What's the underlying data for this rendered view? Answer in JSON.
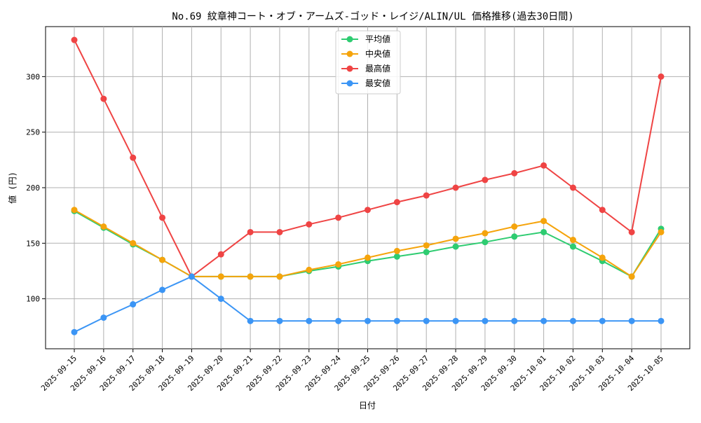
{
  "chart_data": {
    "type": "line",
    "title": "No.69 紋章神コート・オブ・アームズ-ゴッド・レイジ/ALIN/UL 価格推移(過去30日間)",
    "xlabel": "日付",
    "ylabel": "値 (円)",
    "categories": [
      "2025-09-15",
      "2025-09-16",
      "2025-09-17",
      "2025-09-18",
      "2025-09-19",
      "2025-09-20",
      "2025-09-21",
      "2025-09-22",
      "2025-09-23",
      "2025-09-24",
      "2025-09-25",
      "2025-09-26",
      "2025-09-27",
      "2025-09-28",
      "2025-09-29",
      "2025-09-30",
      "2025-10-01",
      "2025-10-02",
      "2025-10-03",
      "2025-10-04",
      "2025-10-05"
    ],
    "ylim": [
      55,
      345
    ],
    "yticks": [
      100,
      150,
      200,
      250,
      300
    ],
    "grid": true,
    "legend_position": "top-center",
    "series": [
      {
        "name": "平均値",
        "color": "#2ecc71",
        "values": [
          179,
          164,
          149,
          135,
          120,
          120,
          120,
          120,
          125,
          129,
          134,
          138,
          142,
          147,
          151,
          156,
          160,
          147,
          134,
          120,
          163
        ]
      },
      {
        "name": "中央値",
        "color": "#f5a40c",
        "values": [
          180,
          165,
          150,
          135,
          120,
          120,
          120,
          120,
          126,
          131,
          137,
          143,
          148,
          154,
          159,
          165,
          170,
          153,
          137,
          120,
          160
        ]
      },
      {
        "name": "最高値",
        "color": "#ef4444",
        "values": [
          333,
          280,
          227,
          173,
          120,
          140,
          160,
          160,
          167,
          173,
          180,
          187,
          193,
          200,
          207,
          213,
          220,
          200,
          180,
          160,
          300
        ]
      },
      {
        "name": "最安値",
        "color": "#3b95f5",
        "values": [
          70,
          83,
          95,
          108,
          120,
          100,
          80,
          80,
          80,
          80,
          80,
          80,
          80,
          80,
          80,
          80,
          80,
          80,
          80,
          80,
          80
        ]
      }
    ]
  }
}
